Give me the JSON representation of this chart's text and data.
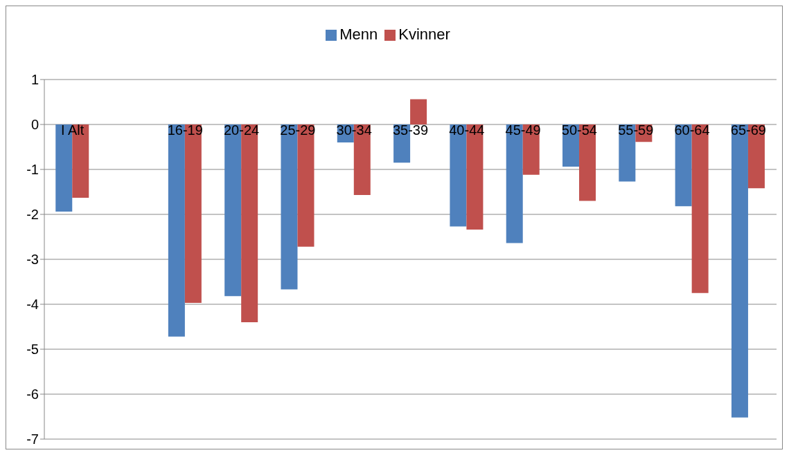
{
  "chart_data": {
    "type": "bar",
    "categories": [
      "I Alt",
      null,
      "16-19",
      "20-24",
      "25-29",
      "30-34",
      "35-39",
      "40-44",
      "45-49",
      "50-54",
      "55-59",
      "60-64",
      "65-69"
    ],
    "series": [
      {
        "name": "Menn",
        "color": "#4f81bd",
        "values": [
          -1.94,
          null,
          -4.72,
          -3.82,
          -3.67,
          -0.4,
          -0.85,
          -2.27,
          -2.64,
          -0.94,
          -1.27,
          -1.82,
          -6.52
        ]
      },
      {
        "name": "Kvinner",
        "color": "#c0504d",
        "values": [
          -1.63,
          null,
          -3.97,
          -4.4,
          -2.72,
          -1.57,
          0.56,
          -2.34,
          -1.12,
          -1.7,
          -0.39,
          -3.75,
          -1.42
        ]
      }
    ],
    "ylim": [
      -7,
      1
    ],
    "yticks": [
      -7,
      -6,
      -5,
      -4,
      -3,
      -2,
      -1,
      0,
      1
    ],
    "grid": "y",
    "legend": "top"
  }
}
